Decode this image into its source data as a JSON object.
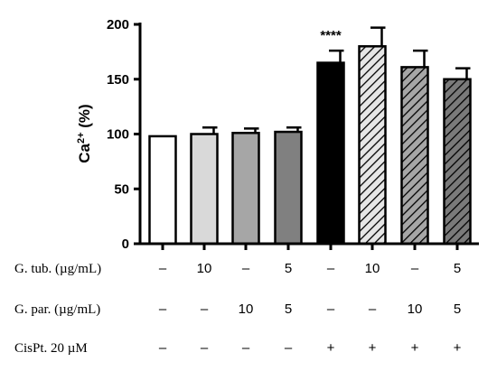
{
  "chart_data": {
    "type": "bar",
    "ylabel_base": "Ca",
    "ylabel_sup": "2+",
    "ylabel_rest": " (%)",
    "ylim": [
      0,
      200
    ],
    "yticks": [
      "0",
      "50",
      "100",
      "150",
      "200"
    ],
    "values": [
      98,
      100,
      101,
      102,
      165,
      180,
      161,
      150
    ],
    "errors": [
      0,
      6,
      4,
      4,
      11,
      17,
      15,
      10
    ],
    "fills": [
      "white",
      "#d9d9d9",
      "#a6a6a6",
      "#808080",
      "#000000",
      "hatch-light",
      "hatch-mid",
      "hatch-dark"
    ],
    "annotations": [
      {
        "bar": 4,
        "text": "****"
      }
    ],
    "treatment_rows": [
      {
        "label": "G. tub. (µg/mL)",
        "cells": [
          "–",
          "10",
          "–",
          "5",
          "–",
          "10",
          "–",
          "5"
        ]
      },
      {
        "label": "G. par. (µg/mL)",
        "cells": [
          "–",
          "–",
          "10",
          "5",
          "–",
          "–",
          "10",
          "5"
        ]
      },
      {
        "label": "CisPt. 20 µM",
        "cells": [
          "–",
          "–",
          "–",
          "–",
          "+",
          "+",
          "+",
          "+"
        ]
      }
    ]
  }
}
